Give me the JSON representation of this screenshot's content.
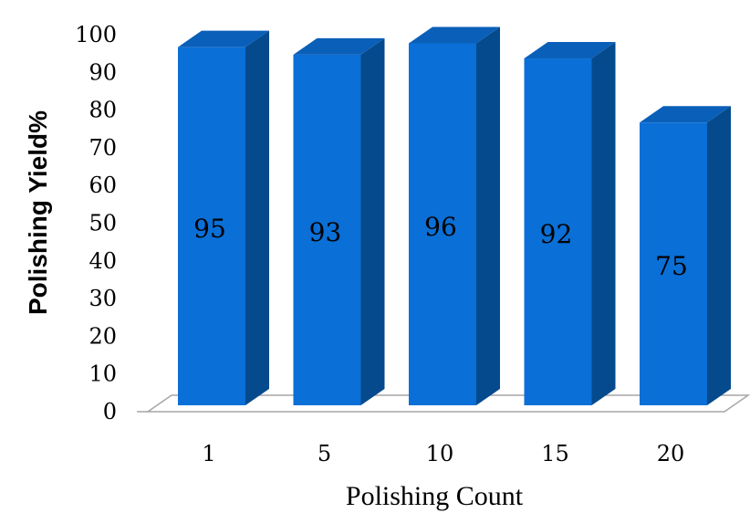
{
  "chart_data": {
    "type": "bar",
    "title": "",
    "xlabel": "Polishing Count",
    "ylabel": "Polishing Yield%",
    "categories": [
      "1",
      "5",
      "10",
      "15",
      "20"
    ],
    "values": [
      95,
      93,
      96,
      92,
      75
    ],
    "data_labels": [
      "95",
      "93",
      "96",
      "92",
      "75"
    ],
    "ylim": [
      0,
      100
    ],
    "yticks": [
      "0",
      "10",
      "20",
      "30",
      "40",
      "50",
      "60",
      "70",
      "80",
      "90",
      "100"
    ],
    "style": "3d",
    "grid": false,
    "legend": "none",
    "colors": {
      "bar_front": "#0a6fd6",
      "bar_side": "#054a8c",
      "bar_top": "#0a5fb8",
      "floor": "#ffffff",
      "floor_edge": "#a6a6a6"
    }
  }
}
